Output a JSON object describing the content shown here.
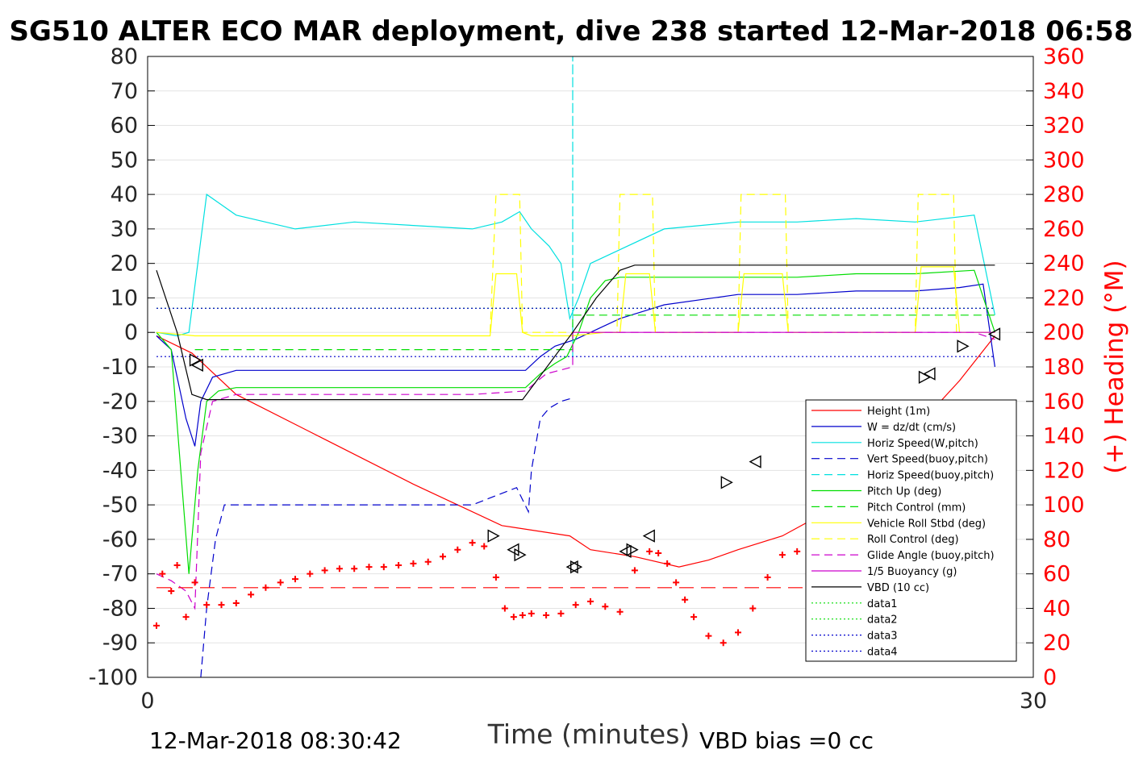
{
  "chart_data": {
    "type": "line",
    "title": "SG510 ALTER ECO MAR deployment, dive 238 started 12-Mar-2018 06:58",
    "xlabel": "Time (minutes)",
    "ylabel_right": "(+) Heading (°M)",
    "footer_left": "12-Mar-2018 08:30:42",
    "footer_right": "VBD bias =0 cc",
    "xlim": [
      0,
      30
    ],
    "ylim_left": [
      -100,
      80
    ],
    "ylim_right": [
      0,
      360
    ],
    "xticks": [
      "0",
      "30"
    ],
    "yticks_left": [
      "80",
      "70",
      "60",
      "50",
      "40",
      "30",
      "20",
      "10",
      "0",
      "-10",
      "-20",
      "-30",
      "-40",
      "-50",
      "-60",
      "-70",
      "-80",
      "-90",
      "-100"
    ],
    "yticks_right": [
      "360",
      "340",
      "320",
      "300",
      "280",
      "260",
      "240",
      "220",
      "200",
      "180",
      "160",
      "140",
      "120",
      "100",
      "80",
      "60",
      "40",
      "20",
      "0"
    ],
    "grid": "horizontal",
    "legend_position": "right",
    "colors": {
      "right_axis": "#ff0000",
      "height": "#ff0000",
      "w": "#0000cc",
      "horiz_speed": "#00e0e0",
      "pitch": "#00dd00",
      "roll": "#ffff00",
      "glide": "#cc00cc",
      "vbd": "#000000"
    },
    "legend": [
      {
        "label": "Height (1m)",
        "color": "#ff0000",
        "dash": ""
      },
      {
        "label": "W = dz/dt (cm/s)",
        "color": "#0000cc",
        "dash": ""
      },
      {
        "label": "Horiz Speed(W,pitch)",
        "color": "#00e0e0",
        "dash": ""
      },
      {
        "label": "Vert Speed(buoy,pitch)",
        "color": "#0000cc",
        "dash": "10,6"
      },
      {
        "label": "Horiz Speed(buoy,pitch)",
        "color": "#00e0e0",
        "dash": "10,6"
      },
      {
        "label": "Pitch Up (deg)",
        "color": "#00dd00",
        "dash": ""
      },
      {
        "label": "Pitch Control (mm)",
        "color": "#00dd00",
        "dash": "10,6"
      },
      {
        "label": "Vehicle Roll Stbd (deg)",
        "color": "#ffff00",
        "dash": ""
      },
      {
        "label": "Roll Control (deg)",
        "color": "#ffff00",
        "dash": "10,6"
      },
      {
        "label": "Glide Angle (buoy,pitch)",
        "color": "#cc00cc",
        "dash": "10,6"
      },
      {
        "label": "1/5 Buoyancy (g)",
        "color": "#cc00cc",
        "dash": ""
      },
      {
        "label": "VBD (10 cc)",
        "color": "#000000",
        "dash": ""
      },
      {
        "label": "data1",
        "color": "#00dd00",
        "dash": "2,3"
      },
      {
        "label": "data2",
        "color": "#00dd00",
        "dash": "2,3"
      },
      {
        "label": "data3",
        "color": "#0000cc",
        "dash": "2,3"
      },
      {
        "label": "data4",
        "color": "#0000cc",
        "dash": "2,3"
      }
    ],
    "series": [
      {
        "name": "Height (1m)",
        "axis": "left",
        "color": "#ff0000",
        "dash": "",
        "x": [
          0.3,
          1.5,
          3.0,
          6.0,
          9.0,
          12.0,
          14.3,
          15.0,
          16.5,
          18.0,
          19.0,
          20.0,
          21.5,
          23.0,
          24.5,
          26.0,
          27.5,
          28.7
        ],
        "y": [
          -1,
          -6,
          -18,
          -31,
          -44,
          -56,
          -59,
          -63,
          -65,
          -68,
          -66,
          -63,
          -59,
          -52,
          -43,
          -28,
          -14,
          -1
        ]
      },
      {
        "name": "W = dz/dt (cm/s)",
        "axis": "left",
        "color": "#0000cc",
        "dash": "",
        "x": [
          0.3,
          0.8,
          1.3,
          1.6,
          1.8,
          2.2,
          3.0,
          5,
          7,
          9,
          11,
          12.8,
          13.3,
          13.8,
          14.5,
          15.0,
          16.0,
          17.5,
          20,
          22,
          24,
          26,
          27.5,
          28.3,
          28.7
        ],
        "y": [
          -1,
          -5,
          -25,
          -33,
          -20,
          -13,
          -11,
          -11,
          -11,
          -11,
          -11,
          -11,
          -7,
          -4,
          -2,
          0,
          4,
          8,
          11,
          11,
          12,
          12,
          13,
          14,
          -10
        ]
      },
      {
        "name": "Horiz Speed(W,pitch)",
        "axis": "left",
        "color": "#00e0e0",
        "dash": "",
        "x": [
          0.3,
          1.0,
          1.4,
          1.7,
          2.0,
          3,
          5,
          7,
          9,
          11,
          12.0,
          12.6,
          13.0,
          13.6,
          14.0,
          14.3,
          14.6,
          15.0,
          16,
          17.5,
          20,
          22,
          24,
          26,
          28,
          28.7
        ],
        "y": [
          0,
          -1,
          0,
          20,
          40,
          34,
          30,
          32,
          31,
          30,
          32,
          35,
          30,
          25,
          20,
          4,
          10,
          20,
          24,
          30,
          32,
          32,
          33,
          32,
          34,
          5
        ]
      },
      {
        "name": "Vert Speed(buoy,pitch)",
        "axis": "left",
        "color": "#0000cc",
        "dash": "10,6",
        "x": [
          1.8,
          2.0,
          2.3,
          2.6,
          3,
          5,
          7,
          9,
          11,
          12.5,
          12.9,
          13.0,
          13.3,
          13.6,
          14.0,
          14.4
        ],
        "y": [
          -100,
          -80,
          -60,
          -50,
          -50,
          -50,
          -50,
          -50,
          -50,
          -45,
          -52,
          -40,
          -25,
          -22,
          -20,
          -19
        ]
      },
      {
        "name": "Horiz Speed(buoy,pitch)",
        "axis": "left",
        "color": "#00e0e0",
        "dash": "10,6",
        "x": [
          14.4,
          14.4,
          14.4
        ],
        "y": [
          0,
          80,
          -8
        ]
      },
      {
        "name": "Pitch Up (deg)",
        "axis": "left",
        "color": "#00dd00",
        "dash": "",
        "x": [
          0.3,
          0.8,
          1.4,
          1.7,
          2.0,
          2.4,
          3,
          5,
          7,
          9,
          11,
          12.8,
          13.3,
          13.8,
          14.2,
          14.6,
          15.0,
          15.5,
          16,
          18,
          20,
          22,
          24,
          26,
          28,
          28.7
        ],
        "y": [
          0,
          -5,
          -70,
          -40,
          -20,
          -17,
          -16,
          -16,
          -16,
          -16,
          -16,
          -16,
          -12,
          -9,
          -7,
          0,
          10,
          15,
          16,
          16,
          16,
          16,
          17,
          17,
          18,
          0
        ]
      },
      {
        "name": "Pitch Control (mm)",
        "axis": "left",
        "color": "#00dd00",
        "dash": "10,6",
        "x": [
          1.6,
          3,
          5,
          7,
          9,
          11,
          13,
          14.4,
          14.4,
          16,
          18,
          20,
          22,
          24,
          26,
          28,
          28.7
        ],
        "y": [
          -5,
          -5,
          -5,
          -5,
          -5,
          -5,
          -5,
          -5,
          5,
          5,
          5,
          5,
          5,
          5,
          5,
          5,
          5
        ]
      },
      {
        "name": "Vehicle Roll Stbd (deg)",
        "axis": "left",
        "color": "#ffff00",
        "dash": "",
        "x": [
          0.3,
          1.6,
          3,
          5,
          7,
          9,
          11,
          11.6,
          11.8,
          12.5,
          12.7,
          13.0,
          14.4,
          15.5,
          16.0,
          16.2,
          17.0,
          17.2,
          20.0,
          20.2,
          21.5,
          21.7,
          26.0,
          26.2,
          27.3,
          27.5,
          28.7
        ],
        "y": [
          0,
          -1,
          -1,
          -1,
          -1,
          -1,
          -1,
          -1,
          17,
          17,
          0,
          -1,
          -1,
          0,
          0,
          17,
          17,
          0,
          0,
          17,
          17,
          0,
          0,
          19,
          19,
          0,
          0
        ]
      },
      {
        "name": "Roll Control (deg)",
        "axis": "left",
        "color": "#ffff00",
        "dash": "10,6",
        "x": [
          11.6,
          11.8,
          12.6,
          12.7,
          15.9,
          16.0,
          17.1,
          17.2,
          20.0,
          20.1,
          21.6,
          21.7,
          26.0,
          26.1,
          27.3,
          27.4
        ],
        "y": [
          0,
          40,
          40,
          0,
          0,
          40,
          40,
          0,
          0,
          40,
          40,
          0,
          0,
          40,
          40,
          0
        ]
      },
      {
        "name": "Glide Angle (buoy,pitch)",
        "axis": "left",
        "color": "#cc00cc",
        "dash": "10,6",
        "x": [
          0.3,
          0.8,
          1.3,
          1.6,
          1.8,
          2.2,
          3,
          5,
          7,
          9,
          11,
          12.8,
          13.5,
          14.4,
          14.4,
          16,
          18,
          20,
          22,
          24,
          26,
          28,
          28.7
        ],
        "y": [
          -70,
          -72,
          -75,
          -80,
          -35,
          -20,
          -18,
          -18,
          -18,
          -18,
          -18,
          -17,
          -12,
          -10,
          0,
          0,
          0,
          0,
          0,
          0,
          0,
          0,
          -2
        ]
      },
      {
        "name": "1/5 Buoyancy (g)",
        "axis": "left",
        "color": "#cc00cc",
        "dash": "",
        "x": [
          14.4,
          16,
          18,
          20,
          22,
          24,
          26,
          28,
          28.7
        ],
        "y": [
          0,
          0,
          0,
          0,
          0,
          0,
          0,
          0,
          0
        ]
      },
      {
        "name": "VBD (10 cc)",
        "axis": "left",
        "color": "#000000",
        "dash": "",
        "x": [
          0.3,
          1.0,
          1.5,
          2.0,
          3,
          5,
          7,
          9,
          11,
          12.0,
          12.7,
          14.4,
          15.2,
          16.0,
          16.5,
          17.5,
          20,
          22,
          24,
          26,
          28,
          28.7
        ],
        "y": [
          18,
          0,
          -18,
          -19.5,
          -19.5,
          -19.5,
          -19.5,
          -19.5,
          -19.5,
          -19.5,
          -19.5,
          0,
          10,
          18,
          19.5,
          19.5,
          19.5,
          19.5,
          19.5,
          19.5,
          19.5,
          19.5
        ]
      },
      {
        "name": "data1",
        "axis": "left",
        "color": "#00dd00",
        "dash": "2,3",
        "x": [
          0.3,
          28.7
        ],
        "y": [
          7,
          7
        ]
      },
      {
        "name": "data3",
        "axis": "left",
        "color": "#0000cc",
        "dash": "2,3",
        "x": [
          0.3,
          28.7
        ],
        "y": [
          -7,
          -7
        ]
      },
      {
        "name": "data4",
        "axis": "left",
        "color": "#0000cc",
        "dash": "2,3",
        "x": [
          0.3,
          28.7
        ],
        "y": [
          7,
          7
        ]
      },
      {
        "name": "Heading target",
        "axis": "right",
        "color": "#ff0000",
        "dash": "18,9",
        "x": [
          0.3,
          28.7
        ],
        "y": [
          52,
          52
        ]
      }
    ],
    "heading_points": {
      "axis": "right",
      "color": "#ff0000",
      "x": [
        0.3,
        0.5,
        0.8,
        1.0,
        1.3,
        1.6,
        2.0,
        2.5,
        3.0,
        3.5,
        4.0,
        4.5,
        5.0,
        5.5,
        6.0,
        6.5,
        7.0,
        7.5,
        8.0,
        8.5,
        9.0,
        9.5,
        10.0,
        10.5,
        11.0,
        11.4,
        11.8,
        12.1,
        12.4,
        12.7,
        13.0,
        13.5,
        14.0,
        14.5,
        15.0,
        15.5,
        16.0,
        16.5,
        17.0,
        17.3,
        17.6,
        17.9,
        18.2,
        18.5,
        19.0,
        19.5,
        20.0,
        20.5,
        21.0,
        21.5,
        22.0,
        22.5,
        23.0,
        23.5,
        24.0,
        24.5,
        25.0,
        25.5,
        26.0,
        26.3,
        26.6,
        27.0,
        27.5,
        28.0,
        28.3,
        28.7
      ],
      "y": [
        30,
        60,
        50,
        65,
        35,
        55,
        42,
        42,
        43,
        48,
        52,
        55,
        57,
        60,
        62,
        63,
        63,
        64,
        64,
        65,
        66,
        67,
        70,
        74,
        78,
        76,
        58,
        40,
        35,
        36,
        37,
        36,
        37,
        42,
        44,
        41,
        38,
        62,
        73,
        72,
        66,
        55,
        45,
        35,
        24,
        20,
        26,
        40,
        58,
        71,
        73,
        72,
        65,
        55,
        45,
        40,
        30,
        20,
        14,
        15,
        25,
        38,
        50,
        62,
        67,
        70
      ]
    },
    "markers": {
      "axis": "left",
      "color": "#000000",
      "x": [
        1.6,
        1.7,
        11.7,
        12.4,
        12.6,
        14.4,
        14.5,
        16.2,
        16.4,
        17.0,
        19.6,
        20.6,
        26.3,
        26.5,
        27.6,
        28.7
      ],
      "y": [
        -8,
        -9.5,
        -59,
        -63,
        -64.5,
        -68,
        -68,
        -63.5,
        -63,
        -59,
        -43.5,
        -37.5,
        -13,
        -12,
        -4,
        -0.5
      ]
    }
  }
}
